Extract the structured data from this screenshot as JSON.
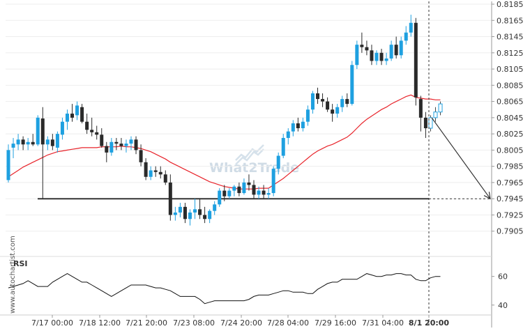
{
  "watermark": "What2Trade",
  "credit": "www.autochartist.com",
  "rsi_label": "RSI",
  "chart_data": {
    "type": "candlestick",
    "price_axis": {
      "ylim": [
        0.7885,
        0.8185
      ],
      "ticks": [
        "0.8185",
        "0.8165",
        "0.8145",
        "0.8125",
        "0.8105",
        "0.8085",
        "0.8065",
        "0.8045",
        "0.8025",
        "0.8005",
        "0.7985",
        "0.7965",
        "0.7945",
        "0.7925",
        "0.7905"
      ]
    },
    "time_axis": {
      "labels": [
        "7/17 00:00",
        "7/18 12:00",
        "7/21 20:00",
        "7/23 08:00",
        "7/24 20:00",
        "7/28 04:00",
        "7/29 16:00",
        "7/31 04:00",
        "8/1 20:00"
      ],
      "highlight": "8/1 20:00"
    },
    "colors": {
      "up": "#1ea0e0",
      "down": "#2a2a2a",
      "ma": "#e8242b",
      "level": "#333333",
      "rsi": "#111111"
    },
    "candles": [
      [
        0.7968,
        0.8012,
        0.7965,
        0.8005
      ],
      [
        0.8008,
        0.802,
        0.7995,
        0.8013
      ],
      [
        0.8012,
        0.8025,
        0.8005,
        0.8018
      ],
      [
        0.8018,
        0.8022,
        0.8005,
        0.8012
      ],
      [
        0.8012,
        0.802,
        0.8005,
        0.8015
      ],
      [
        0.8015,
        0.8025,
        0.801,
        0.8012
      ],
      [
        0.8012,
        0.8048,
        0.801,
        0.8045
      ],
      [
        0.8044,
        0.8058,
        0.7945,
        0.8012
      ],
      [
        0.8012,
        0.8022,
        0.8005,
        0.8018
      ],
      [
        0.8018,
        0.8025,
        0.8005,
        0.801
      ],
      [
        0.8008,
        0.8028,
        0.8002,
        0.8025
      ],
      [
        0.8024,
        0.8045,
        0.8018,
        0.804
      ],
      [
        0.804,
        0.8055,
        0.803,
        0.805
      ],
      [
        0.805,
        0.8062,
        0.804,
        0.8045
      ],
      [
        0.8048,
        0.8065,
        0.8042,
        0.806
      ],
      [
        0.8058,
        0.8062,
        0.8038,
        0.804
      ],
      [
        0.804,
        0.805,
        0.8025,
        0.803
      ],
      [
        0.803,
        0.8045,
        0.8022,
        0.8027
      ],
      [
        0.8027,
        0.8035,
        0.8018,
        0.8024
      ],
      [
        0.8024,
        0.8032,
        0.8008,
        0.801
      ],
      [
        0.801,
        0.8015,
        0.799,
        0.8002
      ],
      [
        0.8002,
        0.802,
        0.7998,
        0.8015
      ],
      [
        0.8015,
        0.802,
        0.8005,
        0.8013
      ],
      [
        0.8013,
        0.802,
        0.8005,
        0.801
      ],
      [
        0.801,
        0.8018,
        0.8002,
        0.8013
      ],
      [
        0.8013,
        0.8022,
        0.8005,
        0.8018
      ],
      [
        0.8018,
        0.8022,
        0.8,
        0.8005
      ],
      [
        0.8005,
        0.8012,
        0.7985,
        0.799
      ],
      [
        0.799,
        0.7995,
        0.7968,
        0.7972
      ],
      [
        0.7972,
        0.7985,
        0.7968,
        0.798
      ],
      [
        0.798,
        0.7985,
        0.7972,
        0.7978
      ],
      [
        0.7978,
        0.7985,
        0.797,
        0.7975
      ],
      [
        0.7975,
        0.798,
        0.7962,
        0.7965
      ],
      [
        0.7965,
        0.7975,
        0.7918,
        0.7925
      ],
      [
        0.7925,
        0.7935,
        0.7918,
        0.7928
      ],
      [
        0.7928,
        0.794,
        0.7922,
        0.7935
      ],
      [
        0.7935,
        0.794,
        0.7915,
        0.792
      ],
      [
        0.792,
        0.7932,
        0.7912,
        0.7928
      ],
      [
        0.7928,
        0.7945,
        0.792,
        0.7932
      ],
      [
        0.7932,
        0.7945,
        0.792,
        0.7925
      ],
      [
        0.7925,
        0.7935,
        0.7915,
        0.792
      ],
      [
        0.792,
        0.7932,
        0.7915,
        0.793
      ],
      [
        0.793,
        0.7942,
        0.7925,
        0.7938
      ],
      [
        0.7938,
        0.7958,
        0.7935,
        0.7955
      ],
      [
        0.7955,
        0.7962,
        0.7942,
        0.7948
      ],
      [
        0.7948,
        0.7958,
        0.7945,
        0.7955
      ],
      [
        0.7955,
        0.7962,
        0.7948,
        0.796
      ],
      [
        0.796,
        0.7965,
        0.7948,
        0.7952
      ],
      [
        0.7952,
        0.797,
        0.795,
        0.7965
      ],
      [
        0.7965,
        0.7975,
        0.7955,
        0.7962
      ],
      [
        0.7962,
        0.7968,
        0.7945,
        0.795
      ],
      [
        0.795,
        0.796,
        0.7945,
        0.7955
      ],
      [
        0.7955,
        0.7962,
        0.7945,
        0.795
      ],
      [
        0.795,
        0.7958,
        0.7945,
        0.7952
      ],
      [
        0.7952,
        0.7985,
        0.7948,
        0.7982
      ],
      [
        0.7982,
        0.8002,
        0.7975,
        0.7998
      ],
      [
        0.7998,
        0.8025,
        0.7995,
        0.802
      ],
      [
        0.802,
        0.8032,
        0.8012,
        0.8028
      ],
      [
        0.8028,
        0.8042,
        0.8022,
        0.8038
      ],
      [
        0.8038,
        0.8045,
        0.8028,
        0.8032
      ],
      [
        0.8032,
        0.8045,
        0.8028,
        0.804
      ],
      [
        0.804,
        0.806,
        0.8035,
        0.8055
      ],
      [
        0.8055,
        0.8078,
        0.805,
        0.8075
      ],
      [
        0.8075,
        0.8082,
        0.8062,
        0.8068
      ],
      [
        0.8068,
        0.8075,
        0.8058,
        0.8065
      ],
      [
        0.8065,
        0.807,
        0.8052,
        0.8055
      ],
      [
        0.8055,
        0.8062,
        0.804,
        0.805
      ],
      [
        0.805,
        0.8062,
        0.8045,
        0.8058
      ],
      [
        0.8058,
        0.8072,
        0.8052,
        0.8068
      ],
      [
        0.8068,
        0.8075,
        0.8058,
        0.8062
      ],
      [
        0.8062,
        0.8115,
        0.806,
        0.811
      ],
      [
        0.811,
        0.814,
        0.8105,
        0.8135
      ],
      [
        0.8135,
        0.815,
        0.8125,
        0.8132
      ],
      [
        0.8132,
        0.814,
        0.8122,
        0.8128
      ],
      [
        0.8128,
        0.8135,
        0.811,
        0.8115
      ],
      [
        0.8115,
        0.8128,
        0.811,
        0.8125
      ],
      [
        0.8125,
        0.813,
        0.811,
        0.8115
      ],
      [
        0.8115,
        0.8125,
        0.811,
        0.8118
      ],
      [
        0.8118,
        0.814,
        0.8115,
        0.8135
      ],
      [
        0.8135,
        0.8145,
        0.8118,
        0.8122
      ],
      [
        0.8122,
        0.8145,
        0.8118,
        0.814
      ],
      [
        0.814,
        0.8158,
        0.8135,
        0.815
      ],
      [
        0.815,
        0.8172,
        0.8145,
        0.8162
      ],
      [
        0.8162,
        0.8168,
        0.806,
        0.807
      ],
      [
        0.8068,
        0.8072,
        0.8028,
        0.8045
      ],
      [
        0.8045,
        0.8052,
        0.802,
        0.8032
      ]
    ],
    "forecast_candles": [
      [
        0.8032,
        0.8048,
        0.8028,
        0.8045
      ],
      [
        0.8045,
        0.8058,
        0.804,
        0.8052
      ],
      [
        0.8052,
        0.8065,
        0.8048,
        0.8062
      ]
    ],
    "moving_average": [
      0.7972,
      0.7976,
      0.798,
      0.7984,
      0.7987,
      0.799,
      0.7993,
      0.7996,
      0.7999,
      0.8001,
      0.8003,
      0.8004,
      0.8005,
      0.8006,
      0.8007,
      0.8008,
      0.8008,
      0.8008,
      0.8008,
      0.8009,
      0.8009,
      0.8009,
      0.8009,
      0.801,
      0.8009,
      0.8009,
      0.8008,
      0.8007,
      0.8005,
      0.8003,
      0.8,
      0.7997,
      0.7994,
      0.799,
      0.7987,
      0.7984,
      0.7981,
      0.7978,
      0.7975,
      0.7972,
      0.7969,
      0.7966,
      0.7964,
      0.7962,
      0.796,
      0.7959,
      0.7958,
      0.7957,
      0.7957,
      0.7957,
      0.7957,
      0.7958,
      0.7958,
      0.7958,
      0.7962,
      0.7966,
      0.797,
      0.7975,
      0.798,
      0.7985,
      0.799,
      0.7995,
      0.8,
      0.8004,
      0.8007,
      0.801,
      0.8012,
      0.8015,
      0.8018,
      0.8021,
      0.8026,
      0.8032,
      0.8038,
      0.8043,
      0.8047,
      0.8051,
      0.8055,
      0.8058,
      0.8062,
      0.8065,
      0.8068,
      0.8071,
      0.8073,
      0.807,
      0.8069,
      0.8068,
      0.8068,
      0.8067,
      0.8067
    ],
    "support_level": 0.7945,
    "projection": {
      "from": 0.8045,
      "to": 0.7945
    },
    "rsi": {
      "label": "RSI",
      "ticks": [
        60,
        40
      ],
      "ylim": [
        36,
        72
      ],
      "values": [
        52,
        53,
        54,
        55,
        57,
        55,
        53,
        53,
        53,
        56,
        58,
        60,
        62,
        60,
        58,
        56,
        56,
        54,
        52,
        50,
        48,
        46,
        48,
        50,
        52,
        54,
        54,
        54,
        54,
        53,
        52,
        52,
        51,
        50,
        48,
        46,
        46,
        46,
        46,
        44,
        41,
        42,
        43,
        43,
        43,
        43,
        43,
        43,
        43,
        44,
        46,
        47,
        47,
        47,
        48,
        49,
        50,
        50,
        49,
        49,
        49,
        48,
        48,
        51,
        53,
        55,
        56,
        56,
        58,
        58,
        58,
        58,
        60,
        62,
        61,
        60,
        60,
        61,
        61,
        62,
        62,
        61,
        61,
        58,
        57,
        57,
        59,
        60,
        60
      ]
    }
  }
}
